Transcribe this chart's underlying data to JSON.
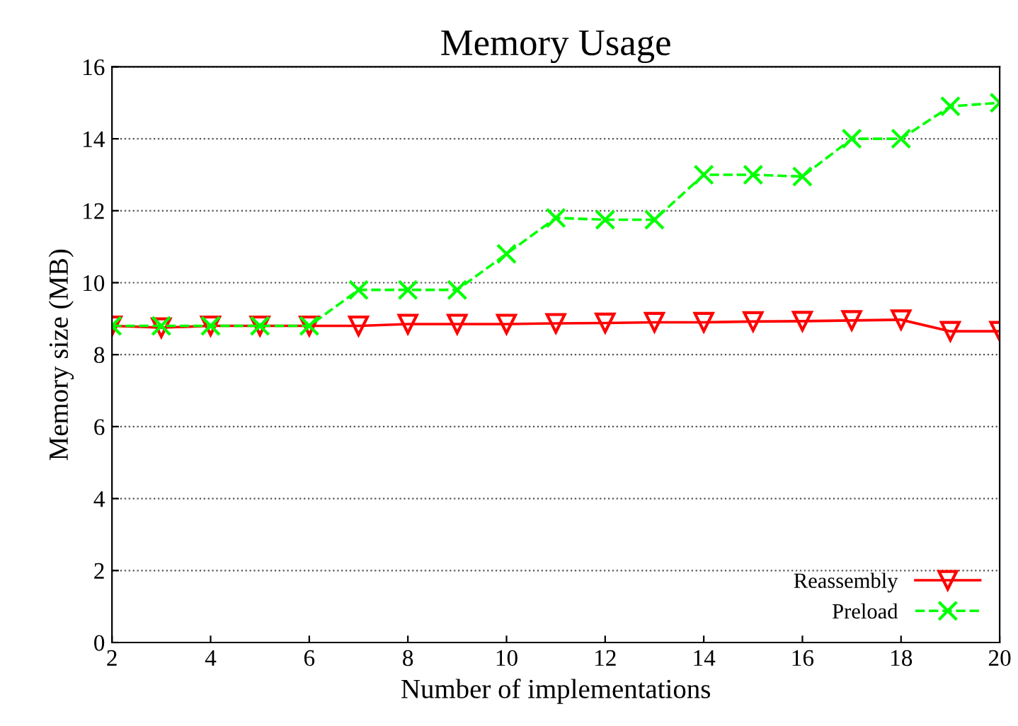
{
  "chart_data": {
    "type": "line",
    "title": "Memory Usage",
    "xlabel": "Number of implementations",
    "ylabel": "Memory size (MB)",
    "x": [
      2,
      3,
      4,
      5,
      6,
      7,
      8,
      9,
      10,
      11,
      12,
      13,
      14,
      15,
      16,
      17,
      18,
      19,
      20
    ],
    "series": [
      {
        "name": "Reassembly",
        "color": "#ff0000",
        "marker": "triangle",
        "line_style": "solid",
        "values": [
          8.8,
          8.75,
          8.8,
          8.8,
          8.8,
          8.8,
          8.85,
          8.85,
          8.85,
          8.87,
          8.88,
          8.9,
          8.9,
          8.92,
          8.93,
          8.95,
          8.97,
          8.65,
          8.65
        ]
      },
      {
        "name": "Preload",
        "color": "#00ff00",
        "marker": "cross",
        "line_style": "dashed",
        "values": [
          8.8,
          8.8,
          8.8,
          8.8,
          8.8,
          9.8,
          9.8,
          9.8,
          10.8,
          11.8,
          11.75,
          11.75,
          13.0,
          13.0,
          12.95,
          14.0,
          14.0,
          14.9,
          15.0
        ]
      }
    ],
    "xlim": [
      2,
      20
    ],
    "xticks": [
      2,
      4,
      6,
      8,
      10,
      12,
      14,
      16,
      18,
      20
    ],
    "ylim": [
      0,
      16
    ],
    "yticks": [
      0,
      2,
      4,
      6,
      8,
      10,
      12,
      14,
      16
    ],
    "grid": "y",
    "legend": "bottom right"
  }
}
